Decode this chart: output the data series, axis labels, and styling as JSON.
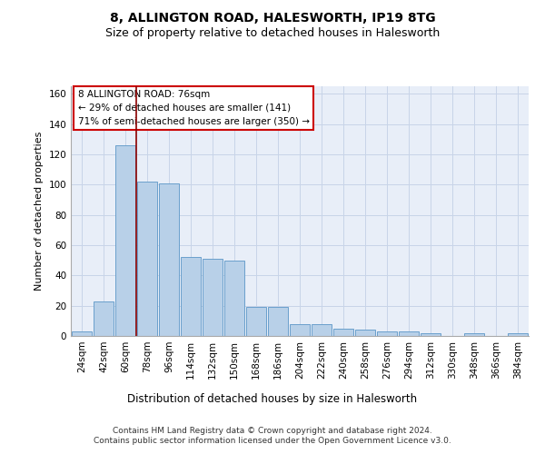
{
  "title": "8, ALLINGTON ROAD, HALESWORTH, IP19 8TG",
  "subtitle": "Size of property relative to detached houses in Halesworth",
  "xlabel": "Distribution of detached houses by size in Halesworth",
  "ylabel": "Number of detached properties",
  "bar_values": [
    3,
    23,
    126,
    102,
    101,
    52,
    51,
    50,
    19,
    19,
    8,
    8,
    5,
    4,
    3,
    3,
    2,
    0,
    2,
    0,
    2
  ],
  "categories": [
    "24sqm",
    "42sqm",
    "60sqm",
    "78sqm",
    "96sqm",
    "114sqm",
    "132sqm",
    "150sqm",
    "168sqm",
    "186sqm",
    "204sqm",
    "222sqm",
    "240sqm",
    "258sqm",
    "276sqm",
    "294sqm",
    "312sqm",
    "330sqm",
    "348sqm",
    "366sqm",
    "384sqm"
  ],
  "bar_color": "#b8d0e8",
  "bar_edge_color": "#6aa0cc",
  "bar_edge_width": 0.7,
  "vline_color": "#8b0000",
  "annotation_box_text": "8 ALLINGTON ROAD: 76sqm\n← 29% of detached houses are smaller (141)\n71% of semi-detached houses are larger (350) →",
  "ylim": [
    0,
    165
  ],
  "yticks": [
    0,
    20,
    40,
    60,
    80,
    100,
    120,
    140,
    160
  ],
  "grid_color": "#c8d4e8",
  "background_color": "#e8eef8",
  "footer_line1": "Contains HM Land Registry data © Crown copyright and database right 2024.",
  "footer_line2": "Contains public sector information licensed under the Open Government Licence v3.0.",
  "title_fontsize": 10,
  "subtitle_fontsize": 9,
  "xlabel_fontsize": 8.5,
  "ylabel_fontsize": 8,
  "tick_fontsize": 7.5,
  "annotation_fontsize": 7.5,
  "footer_fontsize": 6.5
}
